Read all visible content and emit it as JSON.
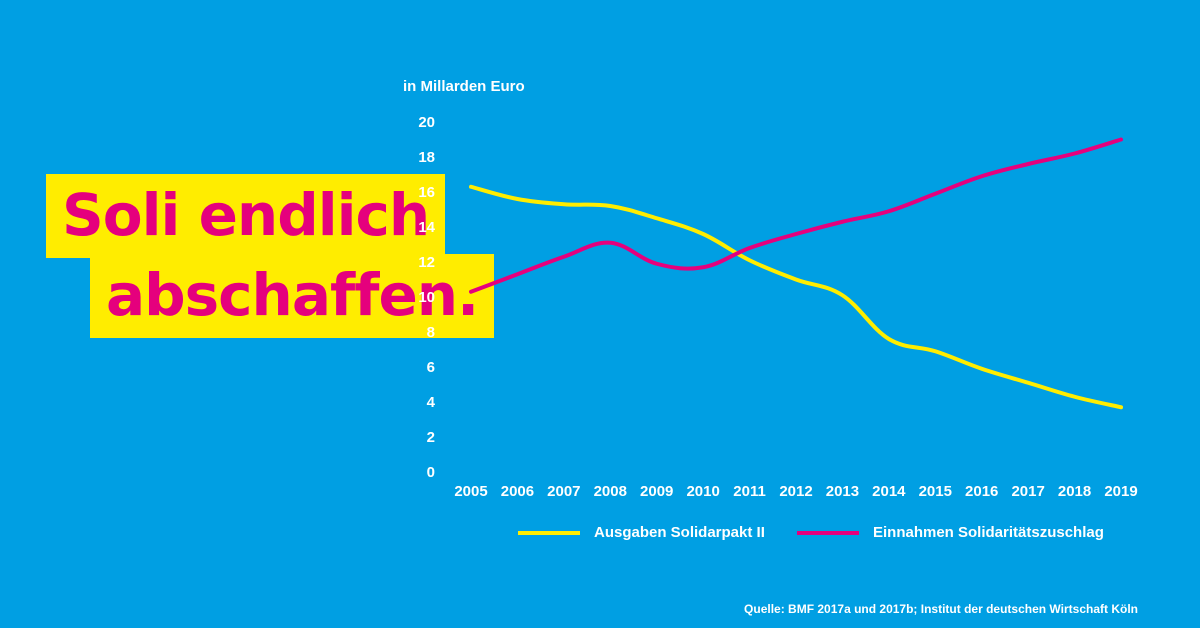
{
  "headline": {
    "line1": "Soli endlich",
    "line2": "abschaffen."
  },
  "colors": {
    "background": "#009FE3",
    "headline_bg": "#FFED00",
    "headline_text": "#E5007D",
    "series_ausgaben": "#FFED00",
    "series_einnahmen": "#E5007D"
  },
  "source": "Quelle: BMF 2017a und 2017b; Institut der deutschen Wirtschaft Köln",
  "chart_data": {
    "type": "line",
    "ylabel": "in Millarden Euro",
    "xlabel": "",
    "title": "",
    "x": [
      "2005",
      "2006",
      "2007",
      "2008",
      "2009",
      "2010",
      "2011",
      "2012",
      "2013",
      "2014",
      "2015",
      "2016",
      "2017",
      "2018",
      "2019"
    ],
    "ylim": [
      0,
      20
    ],
    "yticks": [
      0,
      2,
      4,
      6,
      8,
      10,
      12,
      14,
      16,
      18,
      20
    ],
    "grid": false,
    "legend_position": "bottom",
    "series": [
      {
        "name": "Ausgaben Solidarpakt II",
        "color": "#FFED00",
        "values": [
          16.3,
          15.6,
          15.3,
          15.2,
          14.5,
          13.6,
          12.1,
          11.0,
          10.1,
          7.6,
          6.9,
          5.9,
          5.1,
          4.3,
          3.7
        ]
      },
      {
        "name": "Einnahmen Solidaritätszuschlag",
        "color": "#E5007D",
        "values": [
          10.3,
          11.3,
          12.3,
          13.1,
          11.9,
          11.7,
          12.8,
          13.6,
          14.3,
          14.9,
          15.9,
          16.9,
          17.6,
          18.2,
          19.0
        ]
      }
    ]
  }
}
